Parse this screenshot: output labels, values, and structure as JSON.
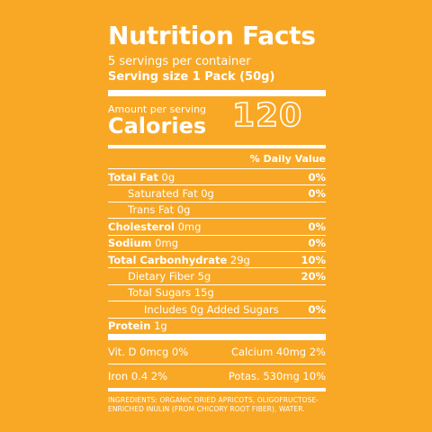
{
  "label": {
    "title": "Nutrition Facts",
    "servings_per_container": "5 servings per container",
    "serving_size": "Serving size 1 Pack (50g)",
    "amount_per_serving": "Amount per serving",
    "calories_label": "Calories",
    "calories_value": "120",
    "daily_value_header": "% Daily Value",
    "nutrients": [
      {
        "name": "Total Fat",
        "amount": " 0g",
        "pct": "0%"
      },
      {
        "name": "Saturated Fat",
        "amount": " 0g",
        "pct": "0%"
      },
      {
        "name": "Trans Fat",
        "amount": " 0g",
        "pct": ""
      },
      {
        "name": "Cholesterol",
        "amount": " 0mg",
        "pct": "0%"
      },
      {
        "name": "Sodium",
        "amount": " 0mg",
        "pct": "0%"
      },
      {
        "name": "Total Carbonhydrate",
        "amount": " 29g",
        "pct": "10%"
      },
      {
        "name": "Dietary Fiber",
        "amount": " 5g",
        "pct": "20%"
      },
      {
        "name": "Total Sugars",
        "amount": " 15g",
        "pct": ""
      },
      {
        "name": "Includes 0g Added Sugars",
        "amount": "",
        "pct": "0%"
      },
      {
        "name": "Protein",
        "amount": " 1g",
        "pct": ""
      }
    ],
    "vitamins": [
      {
        "left": "Vit. D 0mcg 0%",
        "right": "Calcium 40mg 2%"
      },
      {
        "left": "Iron 0.4 2%",
        "right": "Potas. 530mg 10%"
      }
    ],
    "ingredients": "INGREDIENTS: ORGANIC DRIED APRICOTS, OLIGOFRUCTOSE-ENRICHED INULIN (FROM CHICORY ROOT FIBER), WATER."
  },
  "colors": {
    "background": "#F9A825",
    "text": "#FFFFFF"
  }
}
